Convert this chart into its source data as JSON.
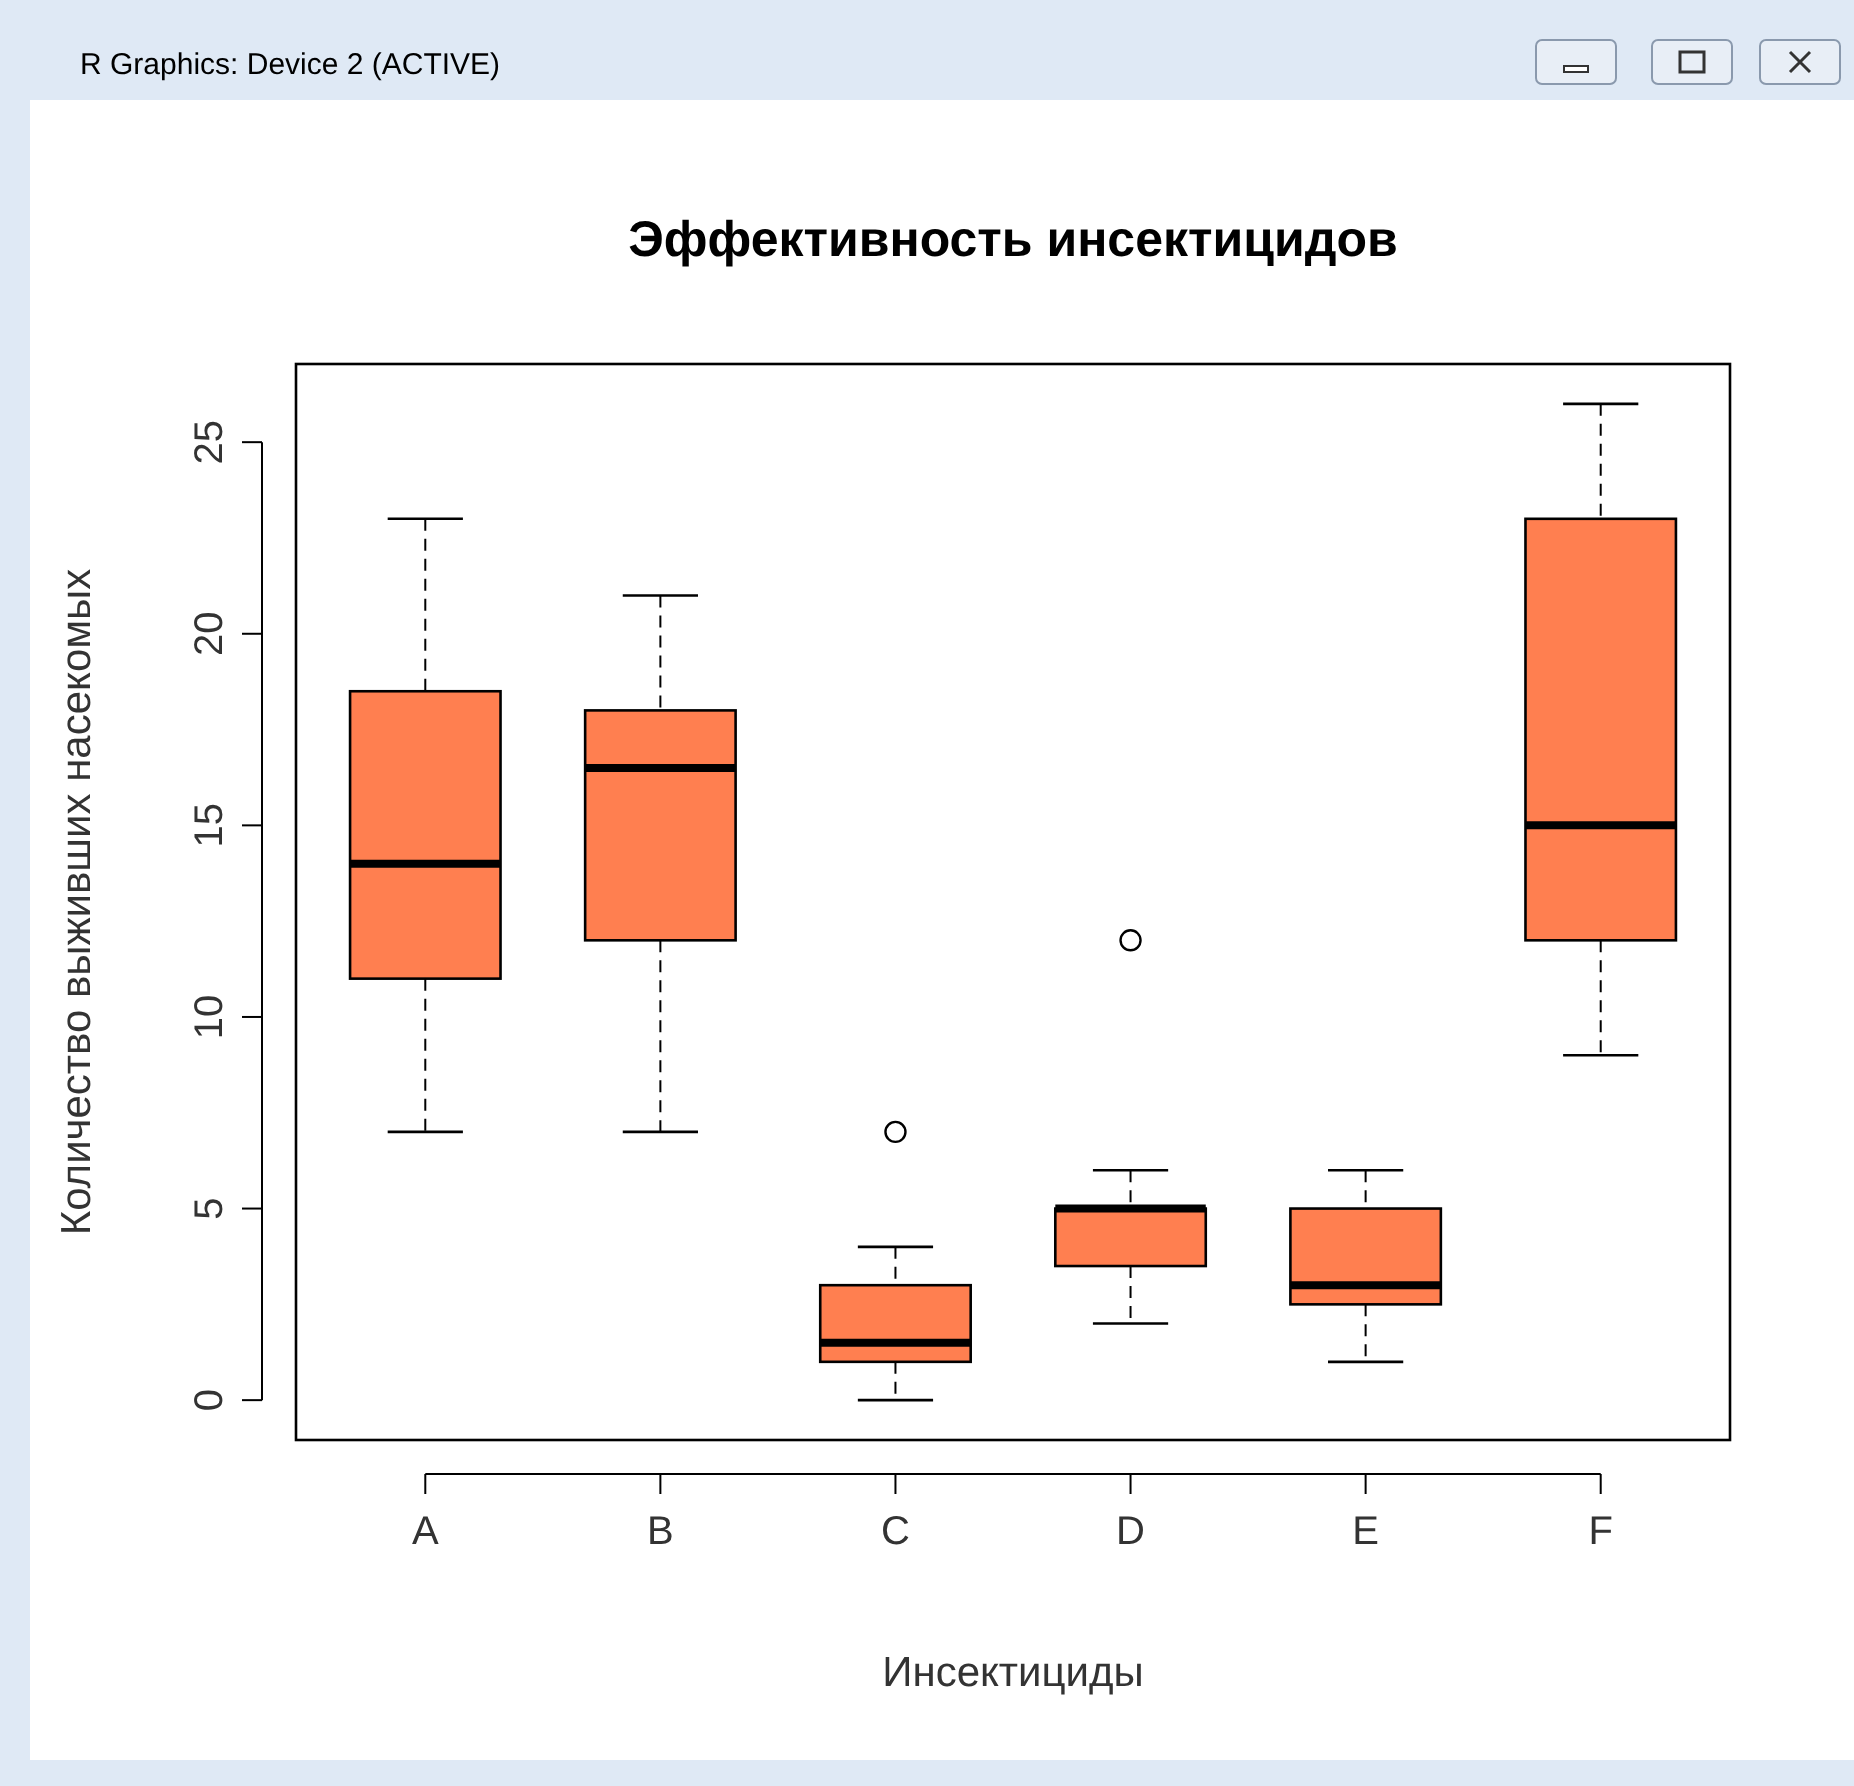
{
  "chart_data": {
    "type": "box",
    "title": "Эффективность инсектицидов",
    "xlabel": "Инсектициды",
    "ylabel": "Количество выживших насекомых",
    "annotations": [
      "R Graphics: Device 2 (ACTIVE)"
    ],
    "categories": [
      "A",
      "B",
      "C",
      "D",
      "E",
      "F"
    ],
    "color": "#ff7f50",
    "boxes": [
      {
        "low": 7,
        "q1": 11,
        "median": 14,
        "q3": 18.5,
        "high": 23
      },
      {
        "low": 7,
        "q1": 12,
        "median": 16.5,
        "q3": 18,
        "high": 21
      },
      {
        "low": 0,
        "q1": 1,
        "median": 1.5,
        "q3": 3,
        "high": 4,
        "outliers": [
          7
        ]
      },
      {
        "low": 2,
        "q1": 3.5,
        "median": 5,
        "q3": 5,
        "high": 6,
        "outliers": [
          12
        ]
      },
      {
        "low": 1,
        "q1": 2.5,
        "median": 3,
        "q3": 5,
        "high": 6
      },
      {
        "low": 9,
        "q1": 12,
        "median": 15,
        "q3": 23,
        "high": 26
      }
    ],
    "ylim": [
      -1.04,
      27.04
    ],
    "yticks": [
      0,
      5,
      10,
      15,
      20,
      25
    ],
    "grid": false
  }
}
